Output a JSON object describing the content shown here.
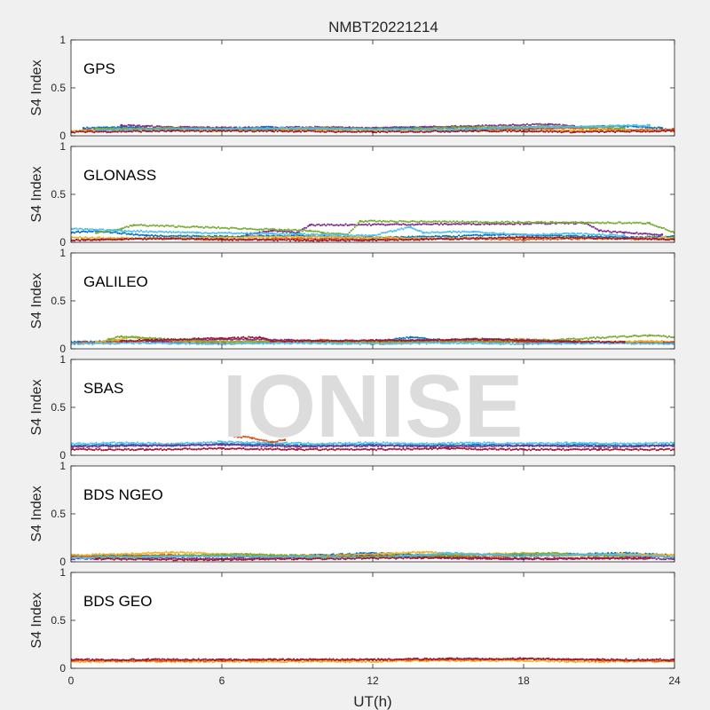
{
  "watermark": "IONISE",
  "chart_data": {
    "type": "scatter",
    "title": "NMBT20221214",
    "xlabel": "UT(h)",
    "ylabel": "S4 Index",
    "xlim": [
      0,
      24
    ],
    "ylim": [
      0,
      1
    ],
    "xticks": [
      0,
      6,
      12,
      18,
      24
    ],
    "yticks": [
      0,
      0.5,
      1
    ],
    "grid": false,
    "series_colors": [
      "#0072BD",
      "#D95319",
      "#EDB120",
      "#7E2F8E",
      "#77AC30",
      "#4DBEEE",
      "#A2142F"
    ],
    "panels": [
      {
        "name": "GPS",
        "series": [
          {
            "color": "#0072BD",
            "x": [
              0.5,
              2,
              4,
              6,
              8,
              10,
              12,
              14,
              16,
              18,
              20,
              22,
              23.5
            ],
            "y": [
              0.08,
              0.09,
              0.07,
              0.08,
              0.09,
              0.07,
              0.08,
              0.09,
              0.08,
              0.07,
              0.09,
              0.1,
              0.08
            ]
          },
          {
            "color": "#D95319",
            "x": [
              0.5,
              2.5,
              5,
              7.5,
              10,
              12.5,
              15,
              17.5,
              20,
              22.5,
              24
            ],
            "y": [
              0.06,
              0.07,
              0.08,
              0.06,
              0.07,
              0.08,
              0.06,
              0.07,
              0.08,
              0.06,
              0.07
            ]
          },
          {
            "color": "#EDB120",
            "x": [
              0,
              3,
              6,
              9,
              12,
              15,
              18,
              21,
              24
            ],
            "y": [
              0.05,
              0.06,
              0.05,
              0.07,
              0.05,
              0.06,
              0.05,
              0.06,
              0.05
            ]
          },
          {
            "color": "#7E2F8E",
            "x": [
              2,
              3,
              4,
              8,
              9,
              13,
              14,
              19,
              20
            ],
            "y": [
              0.11,
              0.1,
              0.09,
              0.08,
              0.09,
              0.08,
              0.09,
              0.12,
              0.1
            ]
          },
          {
            "color": "#77AC30",
            "x": [
              1,
              4,
              7,
              10,
              13,
              16,
              19,
              22
            ],
            "y": [
              0.07,
              0.08,
              0.07,
              0.08,
              0.07,
              0.09,
              0.1,
              0.08
            ]
          },
          {
            "color": "#4DBEEE",
            "x": [
              1,
              5,
              9,
              11,
              15,
              17,
              21,
              23
            ],
            "y": [
              0.06,
              0.07,
              0.08,
              0.07,
              0.06,
              0.08,
              0.1,
              0.11
            ]
          },
          {
            "color": "#A2142F",
            "x": [
              0,
              4,
              8,
              12,
              16,
              18,
              20,
              24
            ],
            "y": [
              0.04,
              0.05,
              0.05,
              0.04,
              0.05,
              0.05,
              0.04,
              0.05
            ]
          }
        ]
      },
      {
        "name": "GLONASS",
        "series": [
          {
            "color": "#0072BD",
            "x": [
              0,
              1,
              3,
              6,
              9,
              12,
              15,
              17,
              19,
              22,
              24
            ],
            "y": [
              0.1,
              0.12,
              0.07,
              0.06,
              0.07,
              0.05,
              0.06,
              0.08,
              0.07,
              0.05,
              0.06
            ]
          },
          {
            "color": "#D95319",
            "x": [
              0.5,
              3,
              6,
              9,
              12,
              15,
              18,
              21,
              24
            ],
            "y": [
              0.03,
              0.04,
              0.03,
              0.04,
              0.03,
              0.04,
              0.03,
              0.04,
              0.03
            ]
          },
          {
            "color": "#EDB120",
            "x": [
              0,
              3,
              6,
              9,
              12,
              15,
              18,
              21,
              24
            ],
            "y": [
              0.05,
              0.04,
              0.05,
              0.06,
              0.05,
              0.04,
              0.05,
              0.04,
              0.05
            ]
          },
          {
            "color": "#7E2F8E",
            "x": [
              7,
              8,
              9,
              9.5,
              20.5,
              21,
              22,
              23.5
            ],
            "y": [
              0.08,
              0.12,
              0.1,
              0.18,
              0.2,
              0.12,
              0.1,
              0.08
            ]
          },
          {
            "color": "#77AC30",
            "x": [
              1,
              2,
              2.5,
              9.5,
              10,
              11,
              11.5,
              23,
              24
            ],
            "y": [
              0.1,
              0.14,
              0.18,
              0.12,
              0.1,
              0.08,
              0.22,
              0.2,
              0.1
            ]
          },
          {
            "color": "#4DBEEE",
            "x": [
              0,
              1,
              2,
              5,
              8,
              10,
              12,
              13.5,
              14,
              16,
              18,
              20,
              22
            ],
            "y": [
              0.14,
              0.13,
              0.12,
              0.1,
              0.09,
              0.08,
              0.07,
              0.16,
              0.1,
              0.11,
              0.08,
              0.09,
              0.07
            ]
          },
          {
            "color": "#A2142F",
            "x": [
              0,
              2,
              4,
              6,
              10,
              14,
              18,
              22,
              24
            ],
            "y": [
              0.02,
              0.03,
              0.04,
              0.03,
              0.02,
              0.03,
              0.05,
              0.04,
              0.03
            ]
          }
        ]
      },
      {
        "name": "GALILEO",
        "series": [
          {
            "color": "#0072BD",
            "x": [
              0,
              2,
              4,
              6,
              8,
              10,
              12,
              13.5,
              15,
              18,
              20,
              22,
              24
            ],
            "y": [
              0.07,
              0.08,
              0.07,
              0.06,
              0.07,
              0.08,
              0.07,
              0.12,
              0.08,
              0.07,
              0.06,
              0.07,
              0.06
            ]
          },
          {
            "color": "#D95319",
            "x": [
              0,
              2,
              4,
              6,
              8,
              10,
              12,
              14,
              16,
              18,
              20,
              22,
              24
            ],
            "y": [
              0.06,
              0.07,
              0.08,
              0.06,
              0.07,
              0.09,
              0.06,
              0.07,
              0.08,
              0.07,
              0.08,
              0.06,
              0.07
            ]
          },
          {
            "color": "#EDB120",
            "x": [
              1,
              2.5,
              4,
              7,
              9,
              12,
              15,
              18,
              21,
              23.5
            ],
            "y": [
              0.07,
              0.12,
              0.08,
              0.07,
              0.08,
              0.07,
              0.09,
              0.1,
              0.07,
              0.08
            ]
          },
          {
            "color": "#7E2F8E",
            "x": [
              3,
              4.5,
              7,
              10,
              15,
              16.5,
              20
            ],
            "y": [
              0.08,
              0.09,
              0.1,
              0.08,
              0.09,
              0.1,
              0.08
            ]
          },
          {
            "color": "#77AC30",
            "x": [
              1.5,
              2,
              5,
              11,
              17,
              19,
              23,
              24
            ],
            "y": [
              0.1,
              0.13,
              0.08,
              0.07,
              0.08,
              0.09,
              0.14,
              0.12
            ]
          },
          {
            "color": "#4DBEEE",
            "x": [
              0,
              3,
              6,
              9,
              12,
              15,
              18,
              21,
              24
            ],
            "y": [
              0.05,
              0.06,
              0.05,
              0.06,
              0.05,
              0.06,
              0.05,
              0.06,
              0.05
            ]
          },
          {
            "color": "#A2142F",
            "x": [
              2,
              3,
              7.5,
              8,
              14,
              16,
              19,
              22
            ],
            "y": [
              0.08,
              0.09,
              0.12,
              0.08,
              0.09,
              0.1,
              0.08,
              0.07
            ]
          }
        ]
      },
      {
        "name": "SBAS",
        "series": [
          {
            "color": "#0072BD",
            "x": [
              0,
              2,
              4,
              6,
              8,
              10,
              12,
              14,
              16,
              18,
              20,
              22,
              24
            ],
            "y": [
              0.1,
              0.11,
              0.1,
              0.12,
              0.11,
              0.1,
              0.11,
              0.1,
              0.11,
              0.1,
              0.11,
              0.1,
              0.11
            ]
          },
          {
            "color": "#4DBEEE",
            "x": [
              0,
              2,
              4,
              6,
              8,
              10,
              12,
              14,
              16,
              18,
              20,
              22,
              24
            ],
            "y": [
              0.12,
              0.13,
              0.12,
              0.14,
              0.13,
              0.12,
              0.13,
              0.12,
              0.13,
              0.12,
              0.13,
              0.12,
              0.13
            ]
          },
          {
            "color": "#7E2F8E",
            "x": [
              0,
              3,
              6,
              9,
              12,
              15,
              18,
              21,
              24
            ],
            "y": [
              0.09,
              0.1,
              0.11,
              0.09,
              0.1,
              0.09,
              0.1,
              0.09,
              0.1
            ]
          },
          {
            "color": "#A2142F",
            "x": [
              0,
              3,
              6,
              9,
              12,
              15,
              18,
              21,
              24
            ],
            "y": [
              0.06,
              0.06,
              0.07,
              0.06,
              0.06,
              0.07,
              0.06,
              0.06,
              0.06
            ]
          },
          {
            "color": "#D95319",
            "x": [
              6.5,
              7.2,
              8,
              8.5
            ],
            "y": [
              0.2,
              0.18,
              0.14,
              0.16
            ]
          }
        ]
      },
      {
        "name": "BDS NGEO",
        "series": [
          {
            "color": "#0072BD",
            "x": [
              0,
              2,
              4,
              6,
              8,
              10,
              12,
              14,
              16,
              18,
              20,
              22,
              24
            ],
            "y": [
              0.06,
              0.07,
              0.06,
              0.07,
              0.06,
              0.07,
              0.09,
              0.07,
              0.08,
              0.07,
              0.08,
              0.09,
              0.07
            ]
          },
          {
            "color": "#D95319",
            "x": [
              0,
              2,
              4,
              6,
              8,
              10,
              12,
              14,
              16,
              18,
              20,
              22,
              24
            ],
            "y": [
              0.05,
              0.06,
              0.07,
              0.06,
              0.05,
              0.06,
              0.07,
              0.06,
              0.05,
              0.06,
              0.07,
              0.06,
              0.05
            ]
          },
          {
            "color": "#EDB120",
            "x": [
              0,
              2,
              4,
              6,
              8,
              10,
              12,
              14,
              16,
              18,
              20,
              22,
              24
            ],
            "y": [
              0.07,
              0.08,
              0.1,
              0.08,
              0.07,
              0.06,
              0.08,
              0.1,
              0.08,
              0.09,
              0.07,
              0.08,
              0.07
            ]
          },
          {
            "color": "#7E2F8E",
            "x": [
              0,
              3,
              6,
              9,
              12,
              15,
              18,
              21,
              24
            ],
            "y": [
              0.03,
              0.04,
              0.03,
              0.04,
              0.06,
              0.04,
              0.03,
              0.04,
              0.03
            ]
          },
          {
            "color": "#77AC30",
            "x": [
              1,
              4,
              7,
              10,
              13,
              16,
              19,
              22
            ],
            "y": [
              0.05,
              0.06,
              0.08,
              0.05,
              0.06,
              0.07,
              0.09,
              0.06
            ]
          },
          {
            "color": "#4DBEEE",
            "x": [
              0,
              3,
              6,
              9,
              12,
              15,
              18,
              21,
              24
            ],
            "y": [
              0.04,
              0.05,
              0.06,
              0.05,
              0.04,
              0.09,
              0.06,
              0.08,
              0.05
            ]
          },
          {
            "color": "#A2142F",
            "x": [
              1,
              5,
              9,
              14,
              19,
              23
            ],
            "y": [
              0.03,
              0.02,
              0.03,
              0.04,
              0.03,
              0.04
            ]
          }
        ]
      },
      {
        "name": "BDS GEO",
        "series": [
          {
            "color": "#EDB120",
            "x": [
              0,
              2,
              4,
              6,
              8,
              10,
              12,
              14,
              16,
              18,
              20,
              22,
              24
            ],
            "y": [
              0.07,
              0.07,
              0.07,
              0.07,
              0.07,
              0.07,
              0.07,
              0.08,
              0.08,
              0.08,
              0.07,
              0.07,
              0.07
            ]
          },
          {
            "color": "#D95319",
            "x": [
              0,
              2,
              4,
              6,
              8,
              10,
              12,
              14,
              16,
              18,
              20,
              22,
              24
            ],
            "y": [
              0.08,
              0.08,
              0.08,
              0.08,
              0.09,
              0.09,
              0.09,
              0.09,
              0.09,
              0.1,
              0.09,
              0.08,
              0.08
            ]
          },
          {
            "color": "#A2142F",
            "x": [
              0,
              3,
              6,
              9,
              12,
              15,
              18,
              21,
              24
            ],
            "y": [
              0.09,
              0.09,
              0.09,
              0.09,
              0.09,
              0.1,
              0.1,
              0.09,
              0.09
            ]
          }
        ]
      }
    ]
  }
}
